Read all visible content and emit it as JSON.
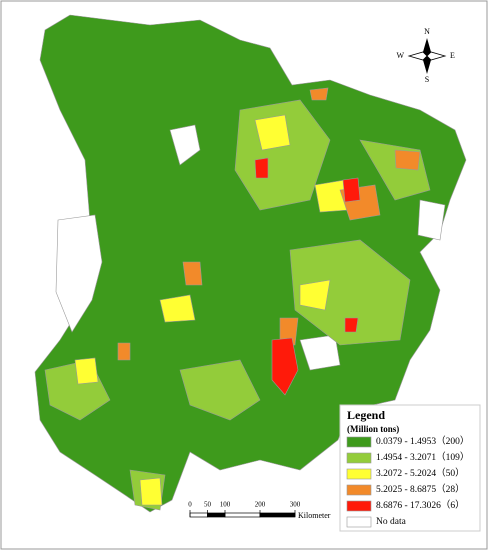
{
  "legend": {
    "title": "Legend",
    "subtitle": "(Million tons)",
    "items": [
      {
        "label": "0.0379 - 1.4953（200）",
        "color": "#3e9a1c"
      },
      {
        "label": "1.4954 - 3.2071（109）",
        "color": "#93cc3a"
      },
      {
        "label": "3.2072 - 5.2024（50）",
        "color": "#ffff33"
      },
      {
        "label": "5.2025 - 8.6875（28）",
        "color": "#f28a2a"
      },
      {
        "label": "8.6876 - 17.3026（6）",
        "color": "#ff1a0a"
      },
      {
        "label": "No data",
        "color": "#ffffff"
      }
    ]
  },
  "scale_bar": {
    "ticks": [
      0,
      50,
      100,
      200,
      300
    ],
    "unit": "Kilometer"
  },
  "compass": {
    "north": "N",
    "south": "S",
    "east": "E",
    "west": "W"
  }
}
